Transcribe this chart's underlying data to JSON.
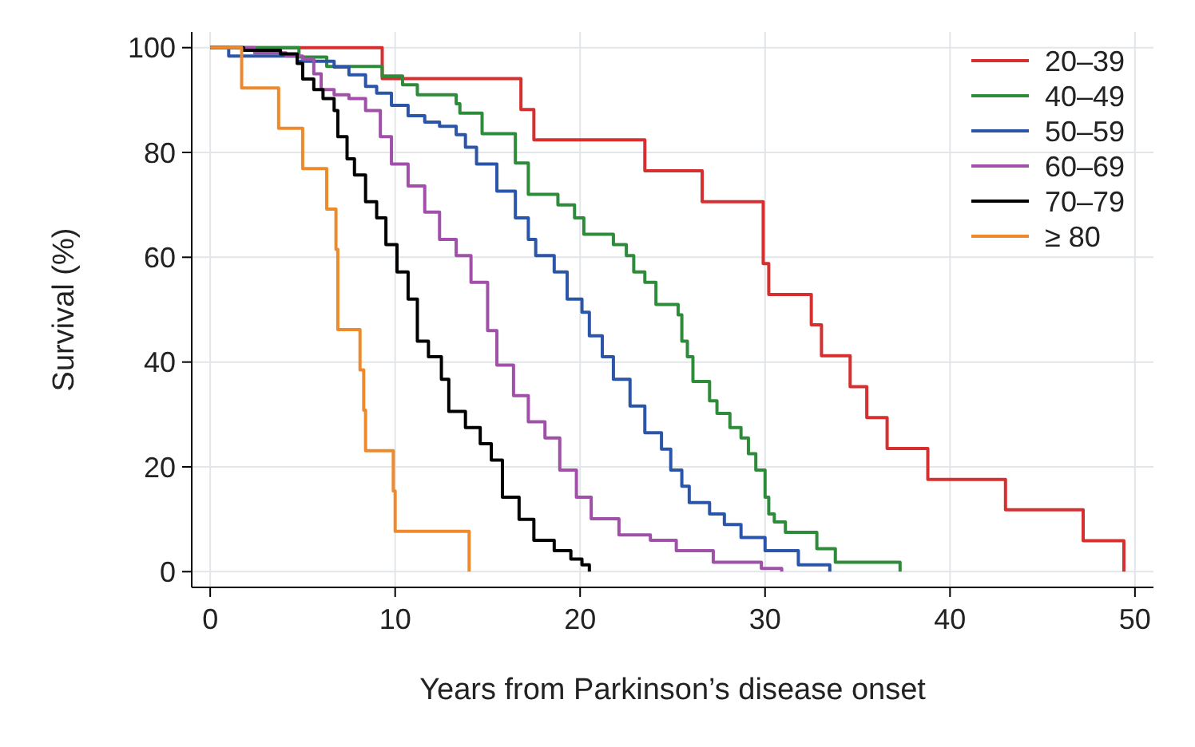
{
  "chart_data": {
    "type": "step",
    "xlabel": "Years from Parkinson’s disease onset",
    "ylabel": "Survival (%)",
    "xlim": [
      -1,
      51
    ],
    "ylim": [
      -3,
      103
    ],
    "xticks": [
      0,
      10,
      20,
      30,
      40,
      50
    ],
    "yticks": [
      0,
      20,
      40,
      60,
      80,
      100
    ],
    "grid": true,
    "legend": "top right",
    "marker": "none",
    "line_style": "solid",
    "series": [
      {
        "name": "20–39",
        "color": "#d62f2f",
        "x": [
          0,
          9.3,
          16.8,
          17.5,
          23.5,
          26.6,
          29.9,
          30.2,
          32.5,
          33.05,
          34.6,
          35.5,
          36.6,
          38.8,
          43,
          47.2,
          49.4
        ],
        "values": [
          100,
          94.1,
          88.2,
          82.4,
          76.5,
          70.6,
          58.8,
          52.9,
          47.1,
          41.2,
          35.3,
          29.4,
          23.5,
          17.6,
          11.8,
          5.9,
          0
        ]
      },
      {
        "name": "40–49",
        "color": "#2e8b3a",
        "x": [
          0,
          4.8,
          6.3,
          9.3,
          10.4,
          11.2,
          13.3,
          13.5,
          14.7,
          16.5,
          17.2,
          18.8,
          19.7,
          20.2,
          21.8,
          22.5,
          22.9,
          23.5,
          24.1,
          25.3,
          25.5,
          25.8,
          26.1,
          27,
          27.4,
          28.1,
          28.7,
          29.1,
          29.5,
          30,
          30.2,
          30.5,
          31.1,
          32.8,
          33.8,
          37.3
        ],
        "values": [
          100,
          98.2,
          96.4,
          94.6,
          92.9,
          91,
          89.3,
          87.5,
          83.6,
          78,
          72,
          70,
          67.5,
          64.4,
          62.4,
          60.3,
          57.2,
          55.2,
          51,
          49,
          44,
          41,
          36.3,
          32.6,
          30.2,
          27.5,
          25.5,
          22.5,
          19.4,
          14.2,
          11,
          9.5,
          7.5,
          4.4,
          1.8,
          0
        ]
      },
      {
        "name": "50–59",
        "color": "#2a55a8",
        "x": [
          0,
          1,
          4.7,
          6.7,
          7.5,
          8.4,
          9,
          9.8,
          10.7,
          11.6,
          12.4,
          13.3,
          13.8,
          14.4,
          15.5,
          16.5,
          17.2,
          17.6,
          18.6,
          19.3,
          20.1,
          20.5,
          21.2,
          21.8,
          22.7,
          23.5,
          24.4,
          24.9,
          25.5,
          25.9,
          27,
          27.8,
          28.7,
          30,
          31.8,
          33.5
        ],
        "values": [
          100,
          98.4,
          97.4,
          96.3,
          94.8,
          92.6,
          91.3,
          89,
          87,
          85.8,
          85,
          83.4,
          81,
          77.8,
          72.6,
          67.5,
          63.4,
          60.3,
          57.2,
          52,
          49.5,
          45,
          41,
          36.7,
          31.6,
          26.5,
          23.4,
          19.4,
          16.3,
          13.2,
          11,
          9,
          6.5,
          4,
          1.3,
          0
        ]
      },
      {
        "name": "60–69",
        "color": "#a050a8",
        "x": [
          0,
          2.4,
          4.1,
          5,
          5.6,
          6,
          6.7,
          7.5,
          8.4,
          9.2,
          9.8,
          10.7,
          11.6,
          12.4,
          13.3,
          14.1,
          15,
          15.5,
          16.4,
          17.2,
          18.1,
          18.9,
          19.8,
          20.6,
          22.1,
          23.8,
          25.2,
          27.2,
          29.8,
          30.9
        ],
        "values": [
          100,
          99,
          98.4,
          97.8,
          95,
          92,
          91,
          90.3,
          88,
          83,
          77.8,
          73.6,
          68.6,
          63.4,
          60.3,
          55.2,
          46,
          39.4,
          33.6,
          28.6,
          25.5,
          19.4,
          14.2,
          10.1,
          7,
          6,
          4,
          1.8,
          0.6,
          0
        ]
      },
      {
        "name": "70–79",
        "color": "#000000",
        "x": [
          0,
          1.8,
          3.8,
          4.7,
          5,
          5.6,
          6.1,
          6.7,
          6.9,
          7.4,
          7.8,
          8.4,
          9,
          9.5,
          10.1,
          10.7,
          11.2,
          11.8,
          12.5,
          12.9,
          13.8,
          14.6,
          15.2,
          15.8,
          16.7,
          17.5,
          18.6,
          19.5,
          20.1,
          20.5
        ],
        "values": [
          100,
          99.5,
          98.8,
          97,
          94,
          92,
          90.3,
          88,
          83,
          78.8,
          75.7,
          70.6,
          67.5,
          62.4,
          57.2,
          52,
          44,
          41,
          36.7,
          30.6,
          27.5,
          24.4,
          21.3,
          14.2,
          10,
          6,
          4,
          2.4,
          1.3,
          0
        ]
      },
      {
        "name": "≥ 80",
        "color": "#ee8a2e",
        "x": [
          0,
          1.7,
          3.7,
          5,
          6.3,
          6.8,
          6.9,
          8.1,
          8.3,
          8.4,
          9.9,
          10,
          14
        ],
        "values": [
          100,
          92.3,
          84.6,
          76.9,
          69.2,
          61.5,
          46.2,
          38.5,
          30.8,
          23.1,
          15.4,
          7.7,
          0
        ]
      }
    ]
  }
}
